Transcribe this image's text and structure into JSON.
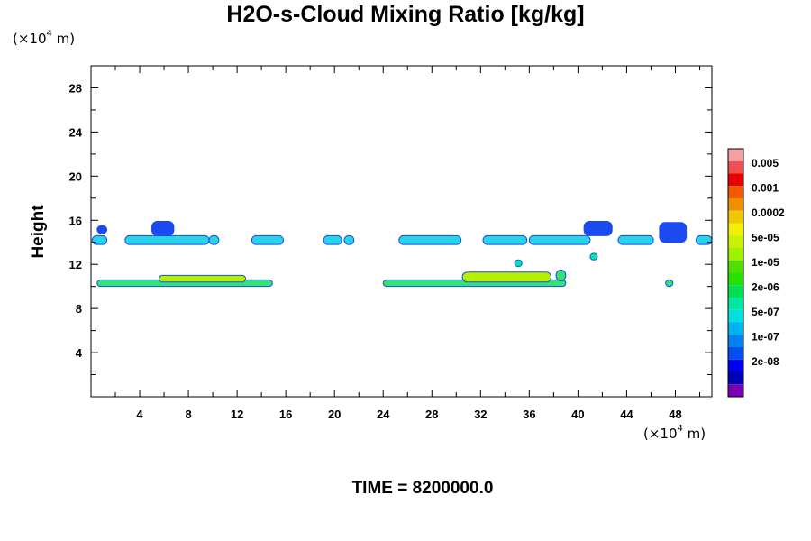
{
  "chart_data": {
    "type": "contour",
    "title": "H2O-s-Cloud Mixing Ratio [kg/kg]",
    "ylabel": "Height",
    "xunit": {
      "prefix": "(×10",
      "exp": "4",
      "suffix": " m)"
    },
    "yunit": {
      "prefix": "(×10",
      "exp": "4",
      "suffix": " m)"
    },
    "footer": "TIME = 8200000.0",
    "xlim": [
      0,
      51
    ],
    "ylim": [
      0,
      30
    ],
    "xticks": [
      4,
      8,
      12,
      16,
      20,
      24,
      28,
      32,
      36,
      40,
      44,
      48
    ],
    "yticks": [
      4,
      8,
      12,
      16,
      20,
      24,
      28
    ],
    "grid": false,
    "colorbar": {
      "position": "right",
      "labels": [
        "0.005",
        "0.001",
        "0.0002",
        "5e-05",
        "1e-05",
        "2e-06",
        "5e-07",
        "1e-07",
        "2e-08"
      ],
      "colors": [
        "#f4a0a0",
        "#f05050",
        "#e80000",
        "#f05a00",
        "#f09000",
        "#f0c800",
        "#f0f000",
        "#c8f000",
        "#a0f000",
        "#50e000",
        "#28e000",
        "#00e050",
        "#00e8a0",
        "#00e0e0",
        "#00b4f0",
        "#0082f0",
        "#0050f0",
        "#0000f0",
        "#0000b4",
        "#7800b4"
      ]
    },
    "features": [
      {
        "x": [
          0.1,
          1.3
        ],
        "y": [
          13.8,
          14.6
        ],
        "level": "5e-07",
        "color": "#28d4ea"
      },
      {
        "x": [
          0.5,
          1.3
        ],
        "y": [
          14.8,
          15.5
        ],
        "level": "1e-07",
        "color": "#1a4af0"
      },
      {
        "x": [
          2.8,
          9.7
        ],
        "y": [
          13.8,
          14.6
        ],
        "level": "5e-07",
        "color": "#28d4ea"
      },
      {
        "x": [
          5.0,
          6.8
        ],
        "y": [
          14.6,
          15.9
        ],
        "level": "1e-07",
        "color": "#1a4af0"
      },
      {
        "x": [
          9.7,
          10.5
        ],
        "y": [
          13.8,
          14.6
        ],
        "level": "5e-07",
        "color": "#28d4ea"
      },
      {
        "x": [
          13.2,
          15.8
        ],
        "y": [
          13.8,
          14.6
        ],
        "level": "5e-07",
        "color": "#28d4ea"
      },
      {
        "x": [
          19.1,
          20.6
        ],
        "y": [
          13.8,
          14.6
        ],
        "level": "5e-07",
        "color": "#28d4ea"
      },
      {
        "x": [
          20.8,
          21.6
        ],
        "y": [
          13.8,
          14.6
        ],
        "level": "5e-07",
        "color": "#28d4ea"
      },
      {
        "x": [
          25.3,
          30.4
        ],
        "y": [
          13.8,
          14.6
        ],
        "level": "5e-07",
        "color": "#28d4ea"
      },
      {
        "x": [
          32.2,
          35.8
        ],
        "y": [
          13.8,
          14.6
        ],
        "level": "5e-07",
        "color": "#28d4ea"
      },
      {
        "x": [
          36.0,
          41.0
        ],
        "y": [
          13.8,
          14.6
        ],
        "level": "5e-07",
        "color": "#28d4ea"
      },
      {
        "x": [
          40.5,
          42.8
        ],
        "y": [
          14.6,
          15.9
        ],
        "level": "1e-07",
        "color": "#1a4af0"
      },
      {
        "x": [
          43.3,
          46.2
        ],
        "y": [
          13.8,
          14.6
        ],
        "level": "5e-07",
        "color": "#28d4ea"
      },
      {
        "x": [
          46.7,
          48.9
        ],
        "y": [
          14.0,
          15.8
        ],
        "level": "1e-07",
        "color": "#1a4af0"
      },
      {
        "x": [
          49.7,
          51.0
        ],
        "y": [
          13.8,
          14.6
        ],
        "level": "5e-07",
        "color": "#28d4ea"
      },
      {
        "x": [
          0.5,
          14.9
        ],
        "y": [
          10.0,
          10.6
        ],
        "level": "1e-05",
        "color": "#34e46a"
      },
      {
        "x": [
          5.6,
          12.7
        ],
        "y": [
          10.4,
          11.0
        ],
        "level": "5e-05",
        "color": "#b4f000"
      },
      {
        "x": [
          24.0,
          39.0
        ],
        "y": [
          10.0,
          10.6
        ],
        "level": "1e-05",
        "color": "#34e46a"
      },
      {
        "x": [
          30.5,
          37.8
        ],
        "y": [
          10.4,
          11.3
        ],
        "level": "5e-05",
        "color": "#b4f000"
      },
      {
        "x": [
          38.2,
          39.0
        ],
        "y": [
          10.5,
          11.5
        ],
        "level": "1e-05",
        "color": "#34e46a"
      },
      {
        "x": [
          34.8,
          35.4
        ],
        "y": [
          11.8,
          12.4
        ],
        "level": "2e-06",
        "color": "#00e8a0"
      },
      {
        "x": [
          41.0,
          41.6
        ],
        "y": [
          12.4,
          13.0
        ],
        "level": "2e-06",
        "color": "#00e8a0"
      },
      {
        "x": [
          47.2,
          47.8
        ],
        "y": [
          10.0,
          10.6
        ],
        "level": "1e-05",
        "color": "#34e46a"
      }
    ]
  }
}
